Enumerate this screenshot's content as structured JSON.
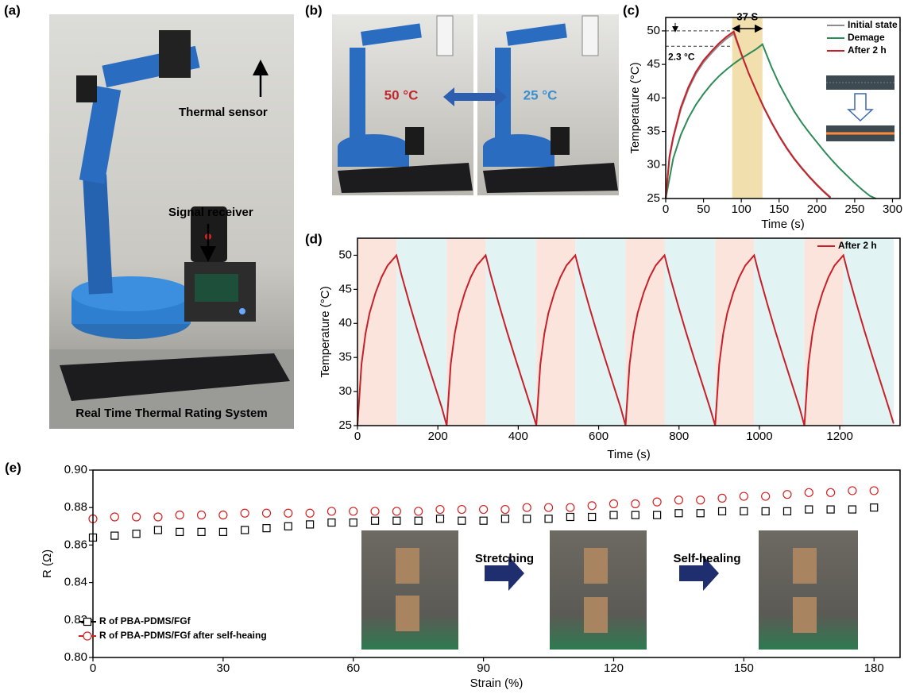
{
  "panel_labels": [
    "(a)",
    "(b)",
    "(c)",
    "(d)",
    "(e)"
  ],
  "photo_a": {
    "labels": [
      "Thermal sensor",
      "Signal receiver"
    ],
    "caption": "Real Time Thermal Rating System"
  },
  "photo_b": {
    "hot": "50 °C",
    "cold": "25 °C"
  },
  "photo_e": {
    "steps": [
      "Stretching",
      "Self-healing"
    ]
  },
  "chart_data": [
    {
      "type": "line",
      "xlabel": "Time (s)",
      "ylabel": "Temperature (°C)",
      "xlim": [
        0,
        310
      ],
      "xticks": [
        0,
        50,
        100,
        150,
        200,
        250,
        300
      ],
      "ylim": [
        25,
        52
      ],
      "yticks": [
        25,
        30,
        35,
        40,
        45,
        50
      ],
      "legend": "upper right",
      "highlight": {
        "start": 88,
        "end": 128,
        "color": "#f2dfae"
      },
      "reference_lines": [
        50,
        47.7
      ],
      "annotations": [
        "37 S",
        "2.3 °C"
      ],
      "series": [
        {
          "name": "Initial state",
          "color": "#8c8c8c",
          "x": [
            0,
            5,
            10,
            20,
            30,
            40,
            50,
            60,
            70,
            80,
            90,
            100,
            110,
            120,
            130,
            140,
            150,
            160,
            170,
            180,
            190,
            200,
            210,
            218
          ],
          "values": [
            25,
            31,
            34,
            38.3,
            41.3,
            43.6,
            45.3,
            46.6,
            47.8,
            48.8,
            49.6,
            46.5,
            43.6,
            41,
            38.6,
            36.4,
            34.4,
            32.6,
            31,
            29.6,
            28.3,
            27.1,
            26,
            25.2
          ]
        },
        {
          "name": "Demage",
          "color": "#2e8b57",
          "x": [
            0,
            10,
            20,
            30,
            40,
            50,
            60,
            70,
            80,
            90,
            100,
            110,
            120,
            128,
            135,
            140,
            150,
            160,
            170,
            180,
            190,
            200,
            210,
            220,
            230,
            240,
            250,
            260,
            270,
            278
          ],
          "values": [
            25,
            31,
            34.5,
            37,
            39,
            40.6,
            42,
            43.2,
            44.2,
            45.1,
            45.9,
            46.6,
            47.3,
            48,
            46,
            44.6,
            42.1,
            40,
            38,
            36.3,
            34.8,
            33.4,
            32,
            30.7,
            29.5,
            28.4,
            27.3,
            26.3,
            25.4,
            25
          ]
        },
        {
          "name": "After 2 h",
          "color": "#c8202a",
          "x": [
            0,
            5,
            10,
            20,
            30,
            40,
            50,
            60,
            70,
            80,
            90,
            100,
            110,
            120,
            130,
            140,
            150,
            160,
            170,
            180,
            190,
            200,
            210,
            218
          ],
          "values": [
            25,
            31.3,
            34.2,
            38.6,
            41.6,
            43.9,
            45.6,
            46.9,
            48.1,
            49.1,
            49.9,
            46.6,
            43.6,
            41,
            38.5,
            36.3,
            34.3,
            32.5,
            30.9,
            29.5,
            28.2,
            27,
            25.9,
            25.1
          ]
        }
      ]
    },
    {
      "type": "line",
      "xlabel": "Time (s)",
      "ylabel": "Temperature (°C)",
      "xlim": [
        0,
        1350
      ],
      "xticks": [
        0,
        200,
        400,
        600,
        800,
        1000,
        1200
      ],
      "ylim": [
        25,
        52.5
      ],
      "yticks": [
        25,
        30,
        35,
        40,
        45,
        50
      ],
      "legend": "upper right",
      "bands": [
        {
          "start": 0,
          "end": 97,
          "color": "#fbe4dc"
        },
        {
          "start": 97,
          "end": 222,
          "color": "#e2f3f3"
        },
        {
          "start": 222,
          "end": 319,
          "color": "#fbe4dc"
        },
        {
          "start": 319,
          "end": 445,
          "color": "#e2f3f3"
        },
        {
          "start": 445,
          "end": 542,
          "color": "#fbe4dc"
        },
        {
          "start": 542,
          "end": 667,
          "color": "#e2f3f3"
        },
        {
          "start": 667,
          "end": 764,
          "color": "#fbe4dc"
        },
        {
          "start": 764,
          "end": 890,
          "color": "#e2f3f3"
        },
        {
          "start": 890,
          "end": 987,
          "color": "#fbe4dc"
        },
        {
          "start": 987,
          "end": 1112,
          "color": "#e2f3f3"
        },
        {
          "start": 1112,
          "end": 1209,
          "color": "#fbe4dc"
        },
        {
          "start": 1209,
          "end": 1334,
          "color": "#e2f3f3"
        }
      ],
      "series": [
        {
          "name": "After 2 h",
          "color": "#c8202a",
          "x": [
            0,
            10,
            20,
            30,
            45,
            60,
            75,
            97,
            110,
            130,
            150,
            170,
            190,
            210,
            222,
            232,
            242,
            252,
            267,
            282,
            297,
            319,
            332,
            352,
            372,
            392,
            412,
            432,
            445,
            455,
            465,
            475,
            490,
            505,
            520,
            542,
            555,
            575,
            595,
            615,
            635,
            655,
            667,
            677,
            687,
            697,
            712,
            727,
            742,
            764,
            777,
            797,
            817,
            837,
            857,
            877,
            890,
            900,
            910,
            920,
            935,
            950,
            965,
            987,
            1000,
            1020,
            1040,
            1060,
            1080,
            1100,
            1112,
            1122,
            1132,
            1142,
            1157,
            1172,
            1187,
            1209,
            1222,
            1242,
            1262,
            1282,
            1302,
            1322,
            1334
          ],
          "values": [
            25,
            34,
            38.5,
            41.5,
            44.5,
            46.8,
            48.5,
            50,
            47,
            42.8,
            38.8,
            35,
            31.3,
            27.6,
            25,
            34,
            38.5,
            41.5,
            44.5,
            46.8,
            48.5,
            50,
            47,
            42.8,
            38.8,
            35,
            31.3,
            27.6,
            25,
            34,
            38.5,
            41.5,
            44.5,
            46.8,
            48.5,
            50,
            47,
            42.8,
            38.8,
            35,
            31.3,
            27.6,
            25,
            34,
            38.5,
            41.5,
            44.5,
            46.8,
            48.5,
            50,
            47,
            42.8,
            38.8,
            35,
            31.3,
            27.6,
            25,
            34,
            38.5,
            41.5,
            44.5,
            46.8,
            48.5,
            50,
            47,
            42.8,
            38.8,
            35,
            31.3,
            27.6,
            25,
            34,
            38.5,
            41.5,
            44.5,
            46.8,
            48.5,
            50,
            47,
            42.8,
            38.8,
            35,
            31.3,
            27.6,
            25.3
          ]
        }
      ]
    },
    {
      "type": "scatter",
      "xlabel": "Strain (%)",
      "ylabel": "R (Ω)",
      "xlim": [
        0,
        186
      ],
      "xticks": [
        0,
        30,
        60,
        90,
        120,
        150,
        180
      ],
      "ylim": [
        0.8,
        0.9
      ],
      "yticks": [
        {
          "value": 0.8,
          "label": "0.80"
        },
        0.82,
        0.84,
        0.86,
        0.88,
        {
          "value": 0.9,
          "label": "0.90"
        }
      ],
      "legend": "lower left",
      "x": [
        0,
        5,
        10,
        15,
        20,
        25,
        30,
        35,
        40,
        45,
        50,
        55,
        60,
        65,
        70,
        75,
        80,
        85,
        90,
        95,
        100,
        105,
        110,
        115,
        120,
        125,
        130,
        135,
        140,
        145,
        150,
        155,
        160,
        165,
        170,
        175,
        180
      ],
      "series": [
        {
          "name": "R of PBA-PDMS/FGf",
          "color": "#000000",
          "marker": "square",
          "values": [
            0.864,
            0.865,
            0.866,
            0.868,
            0.867,
            0.867,
            0.867,
            0.868,
            0.869,
            0.87,
            0.871,
            0.872,
            0.872,
            0.873,
            0.873,
            0.873,
            0.874,
            0.873,
            0.873,
            0.874,
            0.874,
            0.874,
            0.875,
            0.875,
            0.876,
            0.876,
            0.876,
            0.877,
            0.877,
            0.878,
            0.878,
            0.878,
            0.878,
            0.879,
            0.879,
            0.879,
            0.88
          ]
        },
        {
          "name": "R of PBA-PDMS/FGf after self-heaing",
          "color": "#d62020",
          "marker": "circle",
          "values": [
            0.874,
            0.875,
            0.875,
            0.875,
            0.876,
            0.876,
            0.876,
            0.877,
            0.877,
            0.877,
            0.877,
            0.878,
            0.878,
            0.878,
            0.878,
            0.878,
            0.879,
            0.879,
            0.879,
            0.879,
            0.88,
            0.88,
            0.88,
            0.881,
            0.882,
            0.882,
            0.883,
            0.884,
            0.884,
            0.885,
            0.886,
            0.886,
            0.887,
            0.888,
            0.888,
            0.889,
            0.889
          ]
        }
      ]
    }
  ]
}
